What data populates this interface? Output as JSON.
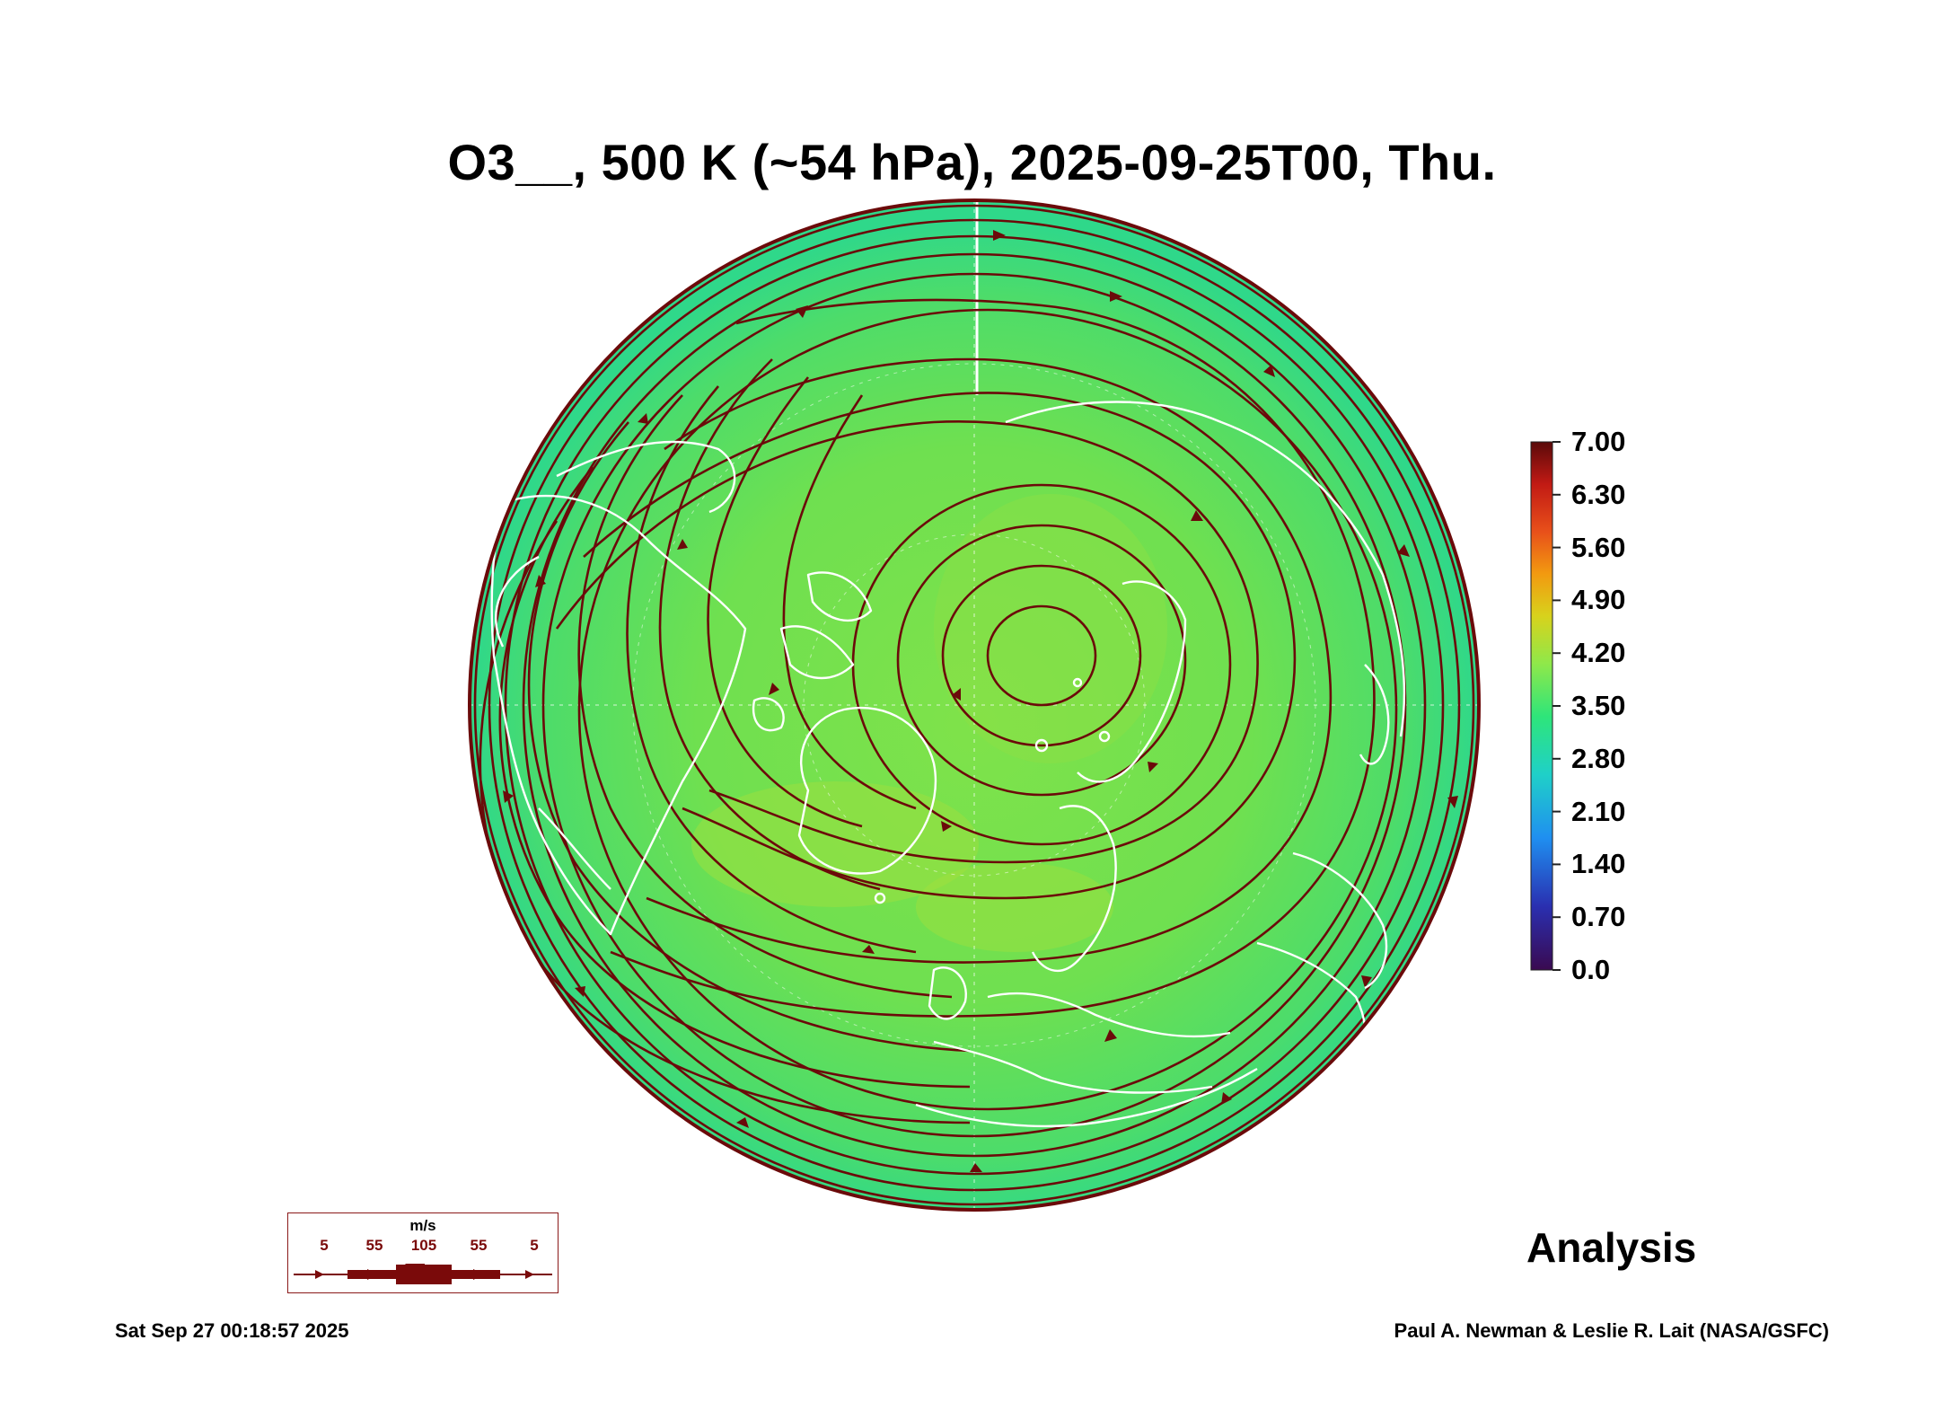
{
  "title": "O3__, 500 K (~54 hPa), 2025-09-25T00, Thu.",
  "colorbar": {
    "ticks": [
      "7.00",
      "6.30",
      "5.60",
      "4.90",
      "4.20",
      "3.50",
      "2.80",
      "2.10",
      "1.40",
      "0.70",
      "0.0"
    ],
    "colors": [
      "#3a0a2e",
      "#2a2fb0",
      "#1f8ff0",
      "#1fd0c8",
      "#2ee57a",
      "#8fe84a",
      "#d8d21c",
      "#f29a10",
      "#e8501a",
      "#c21a14",
      "#6a0e0e"
    ]
  },
  "map": {
    "projection": "north polar stereographic",
    "field_color": "#69e05a",
    "streamline_color": "#6b0a0a",
    "coastline_color": "#ffffff"
  },
  "wind_legend": {
    "unit": "m/s",
    "ticks": [
      "5",
      "55",
      "105",
      "55",
      "5"
    ]
  },
  "label": "Analysis",
  "timestamp": "Sat Sep 27 00:18:57 2025",
  "credit": "Paul A. Newman & Leslie R. Lait (NASA/GSFC)"
}
